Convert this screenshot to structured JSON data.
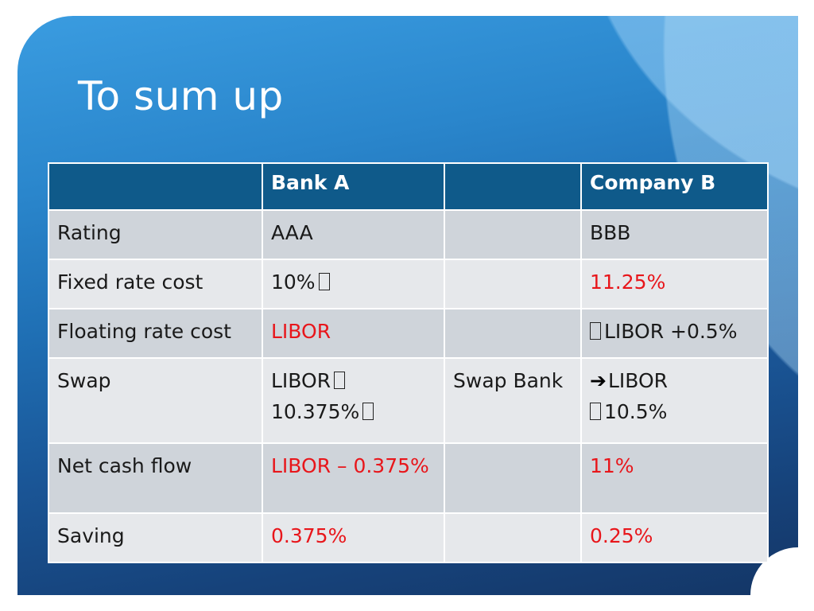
{
  "slide": {
    "title": "To sum up"
  },
  "table": {
    "headers": [
      "",
      "Bank A",
      "",
      "Company B"
    ],
    "rows": [
      {
        "label": "Rating",
        "bank_a": "AAA",
        "middle": "",
        "company_b": "BBB"
      },
      {
        "label": "Fixed rate cost",
        "bank_a": "10%",
        "middle": "",
        "company_b": "11.25%"
      },
      {
        "label": "Floating rate cost",
        "bank_a": "LIBOR",
        "middle": "",
        "company_b": "LIBOR +0.5%"
      },
      {
        "label": "Swap",
        "bank_a_line1": "LIBOR",
        "bank_a_line2": "10.375%",
        "middle": "Swap Bank",
        "company_b_line1": "LIBOR",
        "company_b_line2": "10.5%"
      },
      {
        "label": "Net cash flow",
        "bank_a": "LIBOR – 0.375%",
        "middle": "",
        "company_b": "11%"
      },
      {
        "label": "Saving",
        "bank_a": "0.375%",
        "middle": "",
        "company_b": "0.25%"
      }
    ]
  },
  "colors": {
    "header_bg": "#0f5a8a",
    "row_dark": "#cfd4da",
    "row_light": "#e6e8eb",
    "highlight_red": "#e8161b"
  },
  "icons": {
    "missing_glyph": "missing-glyph-box",
    "arrow": "right-arrow"
  }
}
